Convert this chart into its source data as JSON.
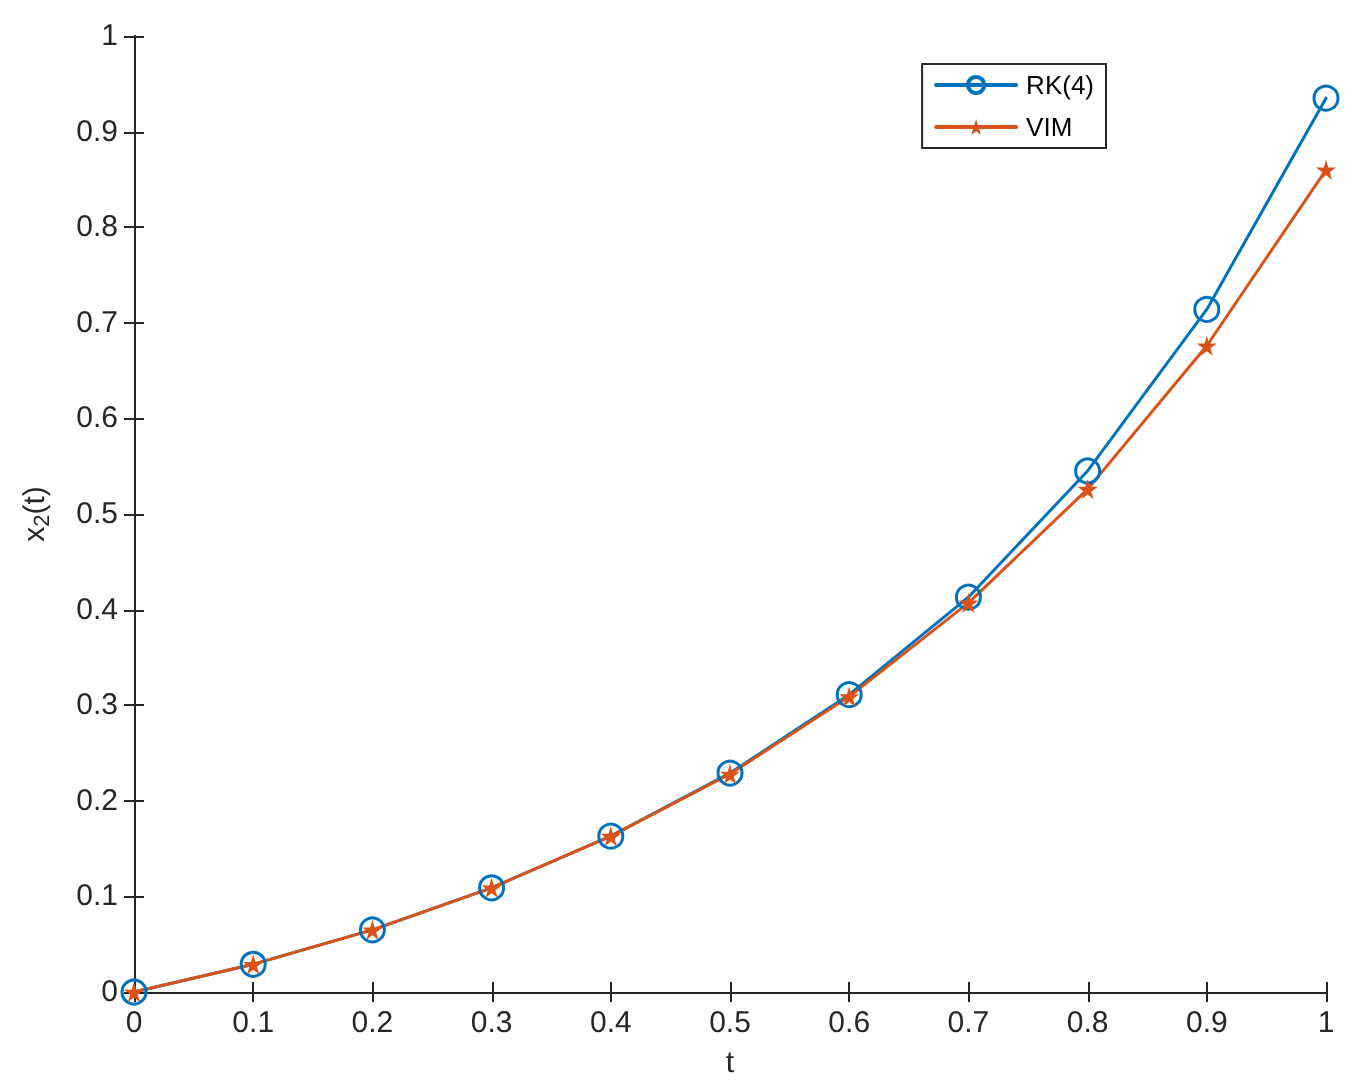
{
  "chart_data": {
    "type": "line",
    "xlabel": "t",
    "ylabel": "x$_{2}$(t)",
    "x": [
      0,
      0.1,
      0.2,
      0.3,
      0.4,
      0.5,
      0.6,
      0.7,
      0.8,
      0.9,
      1
    ],
    "series": [
      {
        "name": "RK(4)",
        "color": "#0072bd",
        "marker": "circle",
        "values": [
          0,
          0.029,
          0.065,
          0.109,
          0.163,
          0.229,
          0.311,
          0.413,
          0.545,
          0.714,
          0.935
        ]
      },
      {
        "name": "VIM",
        "color": "#d95319",
        "marker": "star",
        "values": [
          0,
          0.029,
          0.065,
          0.109,
          0.163,
          0.228,
          0.309,
          0.407,
          0.526,
          0.676,
          0.86
        ]
      }
    ],
    "xlim": [
      0,
      1
    ],
    "xticks": [
      0,
      0.1,
      0.2,
      0.3,
      0.4,
      0.5,
      0.6,
      0.7,
      0.8,
      0.9,
      1
    ],
    "ylim": [
      0,
      1
    ],
    "yticks": [
      0,
      0.1,
      0.2,
      0.3,
      0.4,
      0.5,
      0.6,
      0.7,
      0.8,
      0.9,
      1
    ],
    "grid": false,
    "legend": "top right",
    "line_style": "solid"
  }
}
